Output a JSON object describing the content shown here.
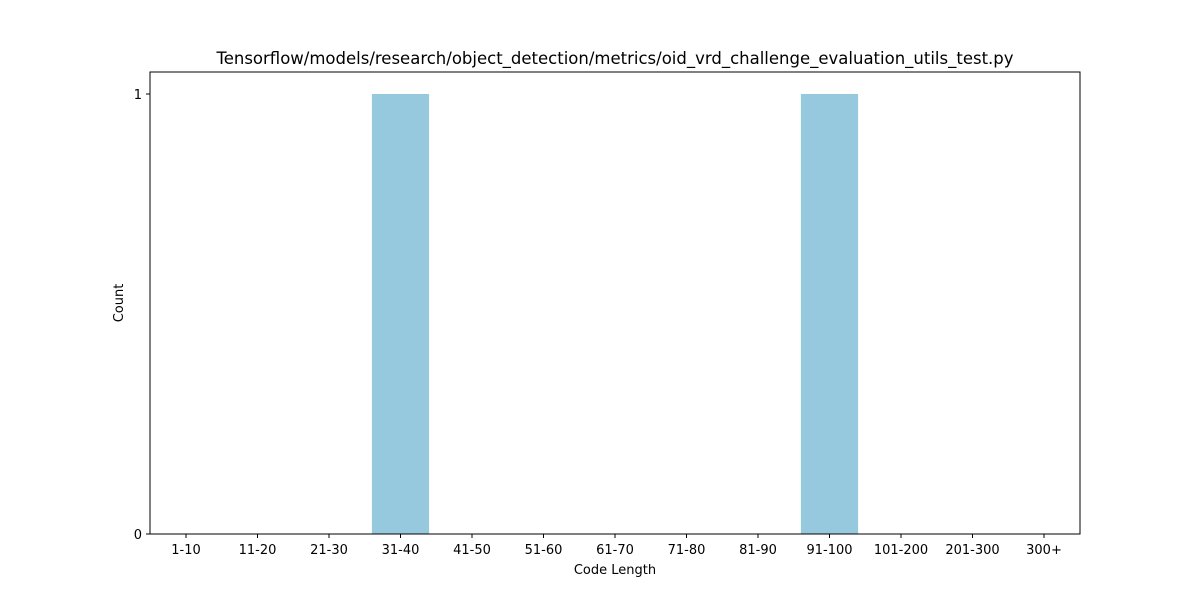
{
  "chart_data": {
    "type": "bar",
    "title": "Tensorflow/models/research/object_detection/metrics/oid_vrd_challenge_evaluation_utils_test.py",
    "xlabel": "Code Length",
    "ylabel": "Count",
    "categories": [
      "1-10",
      "11-20",
      "21-30",
      "31-40",
      "41-50",
      "51-60",
      "61-70",
      "71-80",
      "81-90",
      "91-100",
      "101-200",
      "201-300",
      "300+"
    ],
    "values": [
      0,
      0,
      0,
      1,
      0,
      0,
      0,
      0,
      0,
      1,
      0,
      0,
      0
    ],
    "yticks": [
      0,
      1
    ],
    "ylim": [
      0,
      1.05
    ],
    "grid": false,
    "legend": "none",
    "bar_color": "#96c9de"
  }
}
